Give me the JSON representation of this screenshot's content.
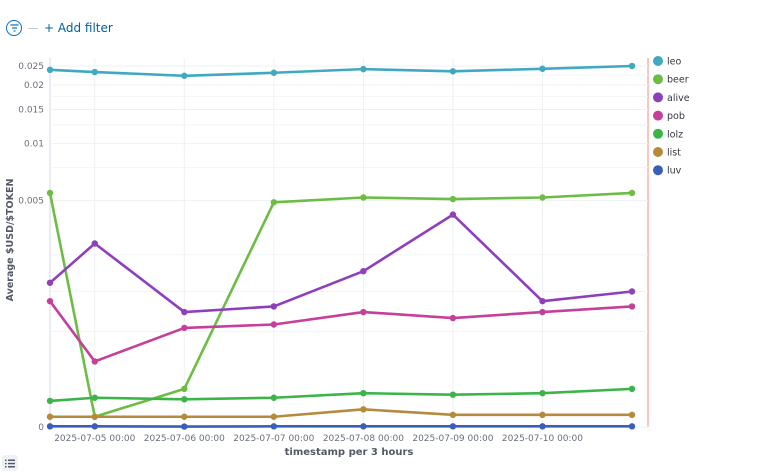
{
  "filter": {
    "add_filter_label": "+ Add filter",
    "icon": "filter-icon"
  },
  "bottom_icon": "list-icon",
  "chart_data": {
    "type": "line",
    "xlabel": "timestamp per 3 hours",
    "ylabel": "Average $USD/$TOKEN",
    "y_tick_labels": [
      "0",
      "0.005",
      "0.01",
      "0.015",
      "0.02",
      "0.025"
    ],
    "x_tick_labels": [
      "2025-07-05 00:00",
      "2025-07-06 00:00",
      "2025-07-07 00:00",
      "2025-07-08 00:00",
      "2025-07-09 00:00",
      "2025-07-10 00:00"
    ],
    "x": [
      "2025-07-04 12:00",
      "2025-07-05 00:00",
      "2025-07-06 00:00",
      "2025-07-07 00:00",
      "2025-07-08 00:00",
      "2025-07-09 00:00",
      "2025-07-10 00:00",
      "2025-07-11 00:00"
    ],
    "legend_position": "right",
    "grid": true,
    "series": [
      {
        "name": "leo",
        "color": "#3fa9bf",
        "values": [
          0.0239,
          0.0233,
          0.0223,
          0.0231,
          0.0241,
          0.0235,
          0.0242,
          0.025
        ]
      },
      {
        "name": "beer",
        "color": "#6dbd45",
        "values": [
          0.0055,
          5e-05,
          0.00022,
          0.0049,
          0.0052,
          0.0051,
          0.0052,
          0.0055
        ]
      },
      {
        "name": "alive",
        "color": "#8e3fbe",
        "values": [
          0.0017,
          0.0029,
          0.0011,
          0.0012,
          0.002,
          0.0042,
          0.0013,
          0.0015
        ]
      },
      {
        "name": "pob",
        "color": "#c5409a",
        "values": [
          0.0013,
          0.00045,
          0.00085,
          0.0009,
          0.0011,
          0.001,
          0.0011,
          0.0012
        ]
      },
      {
        "name": "lolz",
        "color": "#3bb54a",
        "values": [
          0.00014,
          0.00016,
          0.00015,
          0.00016,
          0.00019,
          0.00018,
          0.00019,
          0.00022
        ]
      },
      {
        "name": "list",
        "color": "#b58a3c",
        "values": [
          5e-05,
          5e-05,
          5e-05,
          5e-05,
          9e-05,
          6e-05,
          6e-05,
          6e-05
        ]
      },
      {
        "name": "luv",
        "color": "#3a5fb8",
        "values": [
          3e-06,
          3e-06,
          2e-06,
          3e-06,
          3e-06,
          3e-06,
          3e-06,
          3e-06
        ]
      }
    ]
  }
}
